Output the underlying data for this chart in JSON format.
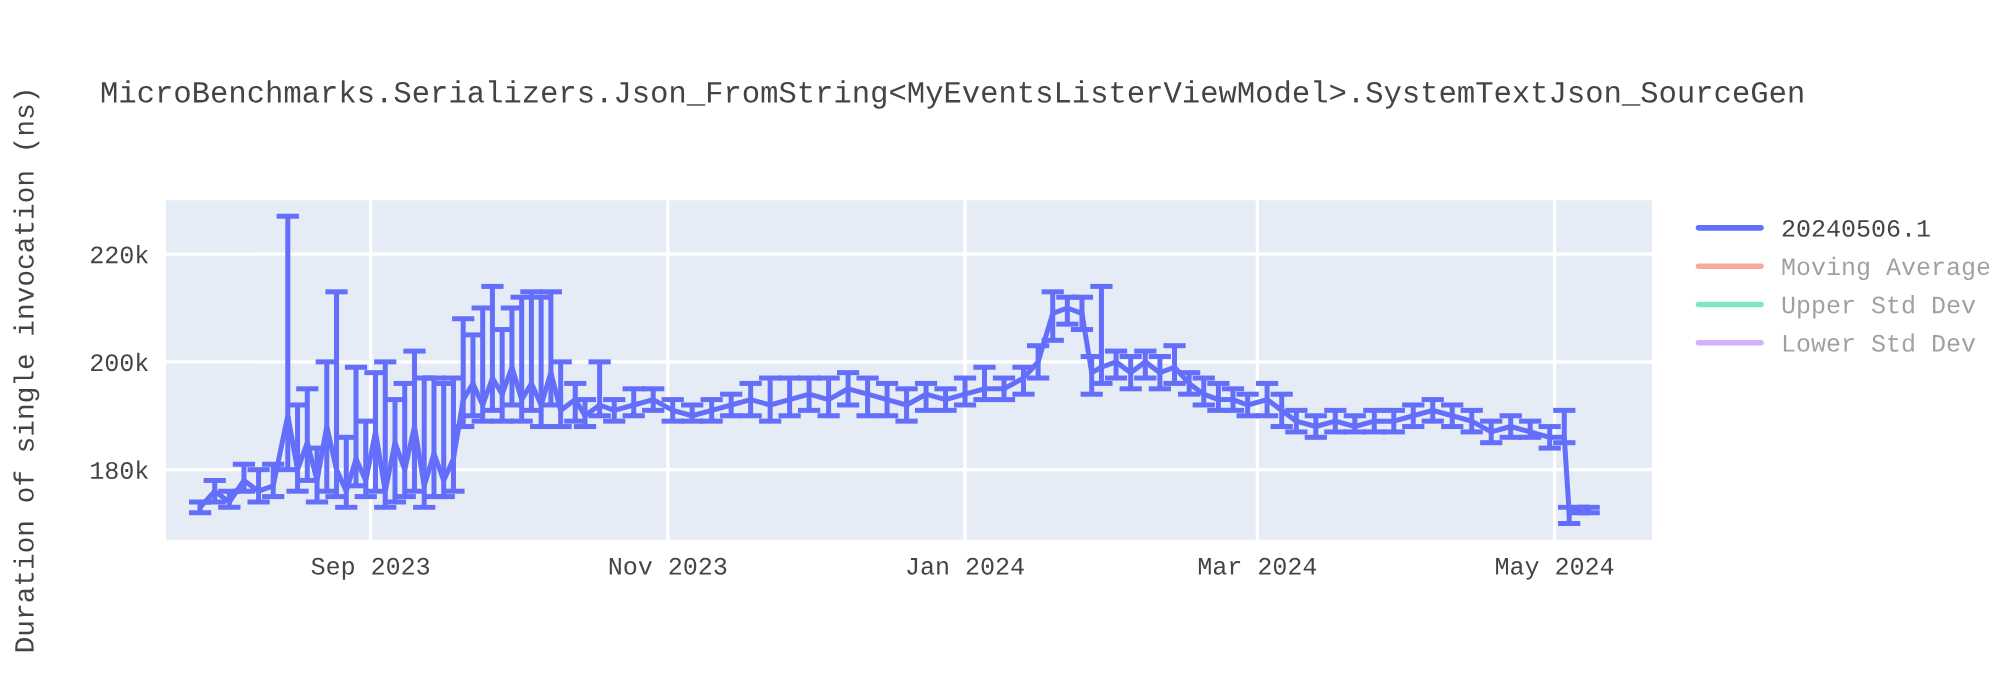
{
  "chart_data": {
    "type": "line",
    "title": "MicroBenchmarks.Serializers.Json_FromString<MyEventsListerViewModel>.SystemTextJson_SourceGen",
    "ylabel": "Duration of single invocation (ns)",
    "x": [
      "2023-07-28",
      "2023-07-31",
      "2023-08-03",
      "2023-08-06",
      "2023-08-09",
      "2023-08-12",
      "2023-08-15",
      "2023-08-17",
      "2023-08-19",
      "2023-08-21",
      "2023-08-23",
      "2023-08-25",
      "2023-08-27",
      "2023-08-29",
      "2023-08-31",
      "2023-09-02",
      "2023-09-04",
      "2023-09-06",
      "2023-09-08",
      "2023-09-10",
      "2023-09-12",
      "2023-09-14",
      "2023-09-16",
      "2023-09-18",
      "2023-09-20",
      "2023-09-22",
      "2023-09-24",
      "2023-09-26",
      "2023-09-28",
      "2023-09-30",
      "2023-10-02",
      "2023-10-04",
      "2023-10-06",
      "2023-10-08",
      "2023-10-10",
      "2023-10-13",
      "2023-10-15",
      "2023-10-18",
      "2023-10-21",
      "2023-10-25",
      "2023-10-29",
      "2023-11-02",
      "2023-11-06",
      "2023-11-10",
      "2023-11-14",
      "2023-11-18",
      "2023-11-22",
      "2023-11-26",
      "2023-11-30",
      "2023-12-04",
      "2023-12-08",
      "2023-12-12",
      "2023-12-16",
      "2023-12-20",
      "2023-12-24",
      "2023-12-28",
      "2024-01-01",
      "2024-01-05",
      "2024-01-09",
      "2024-01-13",
      "2024-01-16",
      "2024-01-19",
      "2024-01-22",
      "2024-01-25",
      "2024-01-27",
      "2024-01-29",
      "2024-02-01",
      "2024-02-04",
      "2024-02-07",
      "2024-02-10",
      "2024-02-13",
      "2024-02-16",
      "2024-02-19",
      "2024-02-22",
      "2024-02-25",
      "2024-02-28",
      "2024-03-03",
      "2024-03-06",
      "2024-03-09",
      "2024-03-13",
      "2024-03-17",
      "2024-03-21",
      "2024-03-25",
      "2024-03-29",
      "2024-04-02",
      "2024-04-06",
      "2024-04-10",
      "2024-04-14",
      "2024-04-18",
      "2024-04-22",
      "2024-04-26",
      "2024-04-30",
      "2024-05-03",
      "2024-05-04",
      "2024-05-06",
      "2024-05-08"
    ],
    "series": [
      {
        "name": "20240506.1",
        "color": "#636efa",
        "values": [
          173000,
          176000,
          174000,
          178000,
          176000,
          177000,
          190000,
          180000,
          185000,
          178000,
          188000,
          180000,
          176000,
          182000,
          178000,
          187000,
          176000,
          185000,
          180000,
          188000,
          177000,
          183000,
          178000,
          182000,
          193000,
          196000,
          192000,
          197000,
          194000,
          199000,
          193000,
          196000,
          192000,
          198000,
          191000,
          193000,
          190000,
          192000,
          191000,
          192000,
          193000,
          191000,
          190000,
          191000,
          192000,
          193000,
          192000,
          193000,
          194000,
          193000,
          195000,
          194000,
          193000,
          192000,
          194000,
          193000,
          194000,
          195000,
          195000,
          197000,
          200000,
          209000,
          210000,
          209000,
          198000,
          199000,
          200000,
          198000,
          200000,
          198000,
          199000,
          196000,
          194000,
          193000,
          193000,
          192000,
          193000,
          191000,
          189000,
          188000,
          189000,
          188000,
          189000,
          189000,
          190000,
          191000,
          190000,
          189000,
          187000,
          188000,
          187000,
          186000,
          186000,
          172000,
          173000,
          173000
        ],
        "errors": [
          [
            172000,
            174000
          ],
          [
            174000,
            178000
          ],
          [
            173000,
            176000
          ],
          [
            176000,
            181000
          ],
          [
            174000,
            180000
          ],
          [
            175000,
            181000
          ],
          [
            180000,
            227000
          ],
          [
            176000,
            192000
          ],
          [
            178000,
            195000
          ],
          [
            174000,
            184000
          ],
          [
            176000,
            200000
          ],
          [
            175000,
            213000
          ],
          [
            173000,
            186000
          ],
          [
            177000,
            199000
          ],
          [
            175000,
            189000
          ],
          [
            176000,
            198000
          ],
          [
            173000,
            200000
          ],
          [
            174000,
            193000
          ],
          [
            175000,
            196000
          ],
          [
            176000,
            202000
          ],
          [
            173000,
            197000
          ],
          [
            175000,
            197000
          ],
          [
            175000,
            196000
          ],
          [
            176000,
            197000
          ],
          [
            188000,
            208000
          ],
          [
            190000,
            205000
          ],
          [
            189000,
            210000
          ],
          [
            191000,
            214000
          ],
          [
            189000,
            206000
          ],
          [
            192000,
            210000
          ],
          [
            189000,
            212000
          ],
          [
            191000,
            213000
          ],
          [
            188000,
            212000
          ],
          [
            192000,
            213000
          ],
          [
            188000,
            200000
          ],
          [
            189000,
            196000
          ],
          [
            188000,
            193000
          ],
          [
            190000,
            200000
          ],
          [
            189000,
            193000
          ],
          [
            190000,
            195000
          ],
          [
            191000,
            195000
          ],
          [
            189000,
            193000
          ],
          [
            189000,
            192000
          ],
          [
            189000,
            193000
          ],
          [
            190000,
            194000
          ],
          [
            190000,
            196000
          ],
          [
            189000,
            197000
          ],
          [
            190000,
            197000
          ],
          [
            191000,
            197000
          ],
          [
            190000,
            197000
          ],
          [
            192000,
            198000
          ],
          [
            190000,
            197000
          ],
          [
            190000,
            196000
          ],
          [
            189000,
            195000
          ],
          [
            191000,
            196000
          ],
          [
            191000,
            195000
          ],
          [
            192000,
            197000
          ],
          [
            193000,
            199000
          ],
          [
            193000,
            197000
          ],
          [
            194000,
            199000
          ],
          [
            197000,
            203000
          ],
          [
            204000,
            213000
          ],
          [
            207000,
            212000
          ],
          [
            206000,
            212000
          ],
          [
            194000,
            201000
          ],
          [
            196000,
            214000
          ],
          [
            197000,
            202000
          ],
          [
            195000,
            201000
          ],
          [
            197000,
            202000
          ],
          [
            195000,
            201000
          ],
          [
            196000,
            203000
          ],
          [
            194000,
            198000
          ],
          [
            192000,
            197000
          ],
          [
            191000,
            196000
          ],
          [
            191000,
            195000
          ],
          [
            190000,
            194000
          ],
          [
            190000,
            196000
          ],
          [
            188000,
            194000
          ],
          [
            187000,
            191000
          ],
          [
            186000,
            190000
          ],
          [
            187000,
            191000
          ],
          [
            187000,
            190000
          ],
          [
            187000,
            191000
          ],
          [
            187000,
            191000
          ],
          [
            188000,
            192000
          ],
          [
            189000,
            193000
          ],
          [
            188000,
            192000
          ],
          [
            187000,
            191000
          ],
          [
            185000,
            189000
          ],
          [
            186000,
            190000
          ],
          [
            186000,
            189000
          ],
          [
            184000,
            188000
          ],
          [
            185000,
            191000
          ],
          [
            170000,
            173000
          ],
          [
            172000,
            173000
          ],
          [
            172000,
            173000
          ]
        ]
      },
      {
        "name": "Moving Average",
        "color": "#ef553b",
        "values": [
          null,
          null,
          null,
          null,
          null,
          null,
          null,
          null,
          null,
          null,
          null,
          null,
          null,
          null,
          null,
          null,
          null,
          null,
          null,
          null,
          null,
          null,
          null,
          null,
          null,
          null,
          null,
          null,
          null,
          null,
          null,
          null,
          null,
          null,
          null,
          null,
          null,
          null,
          null,
          null,
          null,
          null,
          null,
          null,
          null,
          null,
          null,
          null,
          null,
          null,
          null,
          null,
          null,
          null,
          null,
          null,
          null,
          null,
          null,
          null,
          null,
          null,
          null,
          null,
          null,
          null,
          null,
          null,
          null,
          null,
          null,
          null,
          null,
          null,
          null,
          null,
          null,
          null,
          null,
          null,
          null,
          null,
          null,
          null,
          null,
          null,
          null,
          null,
          null,
          null,
          null,
          null,
          null,
          null,
          null,
          null
        ]
      },
      {
        "name": "Upper Std Dev",
        "color": "#00cc96",
        "values": [
          null,
          null,
          null,
          null,
          null,
          null,
          null,
          null,
          null,
          null,
          null,
          null,
          null,
          null,
          null,
          null,
          null,
          null,
          null,
          null,
          null,
          null,
          null,
          null,
          null,
          null,
          null,
          null,
          null,
          null,
          null,
          null,
          null,
          null,
          null,
          null,
          null,
          null,
          null,
          null,
          null,
          null,
          null,
          null,
          null,
          null,
          null,
          null,
          null,
          null,
          null,
          null,
          null,
          null,
          null,
          null,
          null,
          null,
          null,
          null,
          null,
          null,
          null,
          null,
          null,
          null,
          null,
          null,
          null,
          null,
          null,
          null,
          null,
          null,
          null,
          null,
          null,
          null,
          null,
          null,
          null,
          null,
          null,
          null,
          null,
          null,
          null,
          null,
          null,
          null,
          null,
          null,
          null,
          null,
          null,
          null
        ]
      },
      {
        "name": "Lower Std Dev",
        "color": "#ab63fa",
        "values": [
          null,
          null,
          null,
          null,
          null,
          null,
          null,
          null,
          null,
          null,
          null,
          null,
          null,
          null,
          null,
          null,
          null,
          null,
          null,
          null,
          null,
          null,
          null,
          null,
          null,
          null,
          null,
          null,
          null,
          null,
          null,
          null,
          null,
          null,
          null,
          null,
          null,
          null,
          null,
          null,
          null,
          null,
          null,
          null,
          null,
          null,
          null,
          null,
          null,
          null,
          null,
          null,
          null,
          null,
          null,
          null,
          null,
          null,
          null,
          null,
          null,
          null,
          null,
          null,
          null,
          null,
          null,
          null,
          null,
          null,
          null,
          null,
          null,
          null,
          null,
          null,
          null,
          null,
          null,
          null,
          null,
          null,
          null,
          null,
          null,
          null,
          null,
          null,
          null,
          null,
          null,
          null,
          null,
          null,
          null,
          null
        ]
      }
    ],
    "xlim": [
      "2023-07-21",
      "2024-05-21"
    ],
    "xticks": [
      {
        "value": "2023-09-01",
        "label": "Sep 2023"
      },
      {
        "value": "2023-11-01",
        "label": "Nov 2023"
      },
      {
        "value": "2024-01-01",
        "label": "Jan 2024"
      },
      {
        "value": "2024-03-01",
        "label": "Mar 2024"
      },
      {
        "value": "2024-05-01",
        "label": "May 2024"
      }
    ],
    "ylim": [
      167000,
      230000
    ],
    "yticks": [
      {
        "value": 180000,
        "label": "180k"
      },
      {
        "value": 200000,
        "label": "200k"
      },
      {
        "value": 220000,
        "label": "220k"
      }
    ],
    "grid": true,
    "legend": "right",
    "marker": "none",
    "line_style": "solid"
  }
}
